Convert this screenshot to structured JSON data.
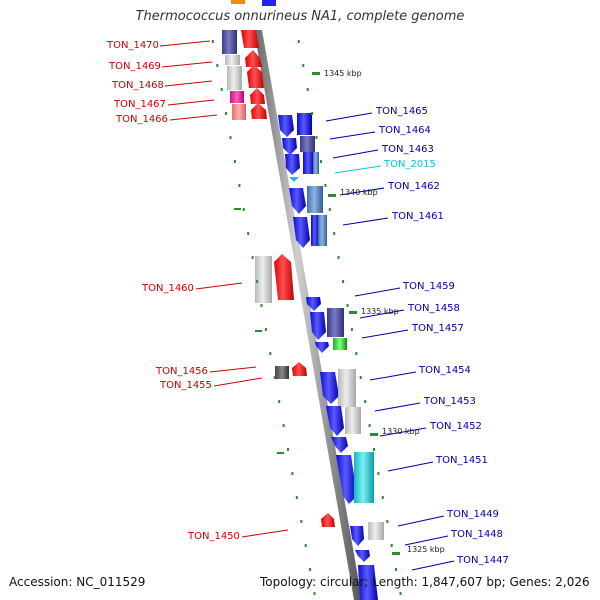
{
  "title": "Thermococcus onnurineus NA1, complete genome",
  "footer": {
    "accession": "Accession: NC_011529",
    "topology": "Topology: circular; Length: 1,847,607 bp; Genes: 2,026"
  },
  "ticks": [
    "1345 kbp",
    "1340 kbp",
    "1335 kbp",
    "1330 kbp",
    "1325 kbp"
  ],
  "genes": [
    {
      "label": "TON_1470",
      "strand": "minus",
      "color": "#d00000"
    },
    {
      "label": "TON_1469",
      "strand": "minus",
      "color": "#d00000"
    },
    {
      "label": "TON_1468",
      "strand": "minus",
      "color": "#d00000"
    },
    {
      "label": "TON_1467",
      "strand": "minus",
      "color": "#d00000"
    },
    {
      "label": "TON_1466",
      "strand": "minus",
      "color": "#d00000"
    },
    {
      "label": "TON_1465",
      "strand": "plus",
      "color": "#0000aa"
    },
    {
      "label": "TON_1464",
      "strand": "plus",
      "color": "#0000aa"
    },
    {
      "label": "TON_1463",
      "strand": "plus",
      "color": "#0000aa"
    },
    {
      "label": "TON_2015",
      "strand": "plus",
      "color": "#00c8e0"
    },
    {
      "label": "TON_1462",
      "strand": "plus",
      "color": "#0000aa"
    },
    {
      "label": "TON_1461",
      "strand": "plus",
      "color": "#0000aa"
    },
    {
      "label": "TON_1460",
      "strand": "minus",
      "color": "#d00000"
    },
    {
      "label": "TON_1459",
      "strand": "plus",
      "color": "#0000aa"
    },
    {
      "label": "TON_1458",
      "strand": "plus",
      "color": "#0000aa"
    },
    {
      "label": "TON_1457",
      "strand": "plus",
      "color": "#0000aa"
    },
    {
      "label": "TON_1456",
      "strand": "minus",
      "color": "#d00000"
    },
    {
      "label": "TON_1455",
      "strand": "minus",
      "color": "#d00000"
    },
    {
      "label": "TON_1454",
      "strand": "plus",
      "color": "#0000aa"
    },
    {
      "label": "TON_1453",
      "strand": "plus",
      "color": "#0000aa"
    },
    {
      "label": "TON_1452",
      "strand": "plus",
      "color": "#0000aa"
    },
    {
      "label": "TON_1451",
      "strand": "plus",
      "color": "#0000aa"
    },
    {
      "label": "TON_1450",
      "strand": "minus",
      "color": "#d00000"
    },
    {
      "label": "TON_1449",
      "strand": "plus",
      "color": "#0000aa"
    },
    {
      "label": "TON_1448",
      "strand": "plus",
      "color": "#0000aa"
    },
    {
      "label": "TON_1447",
      "strand": "plus",
      "color": "#0000aa"
    }
  ]
}
